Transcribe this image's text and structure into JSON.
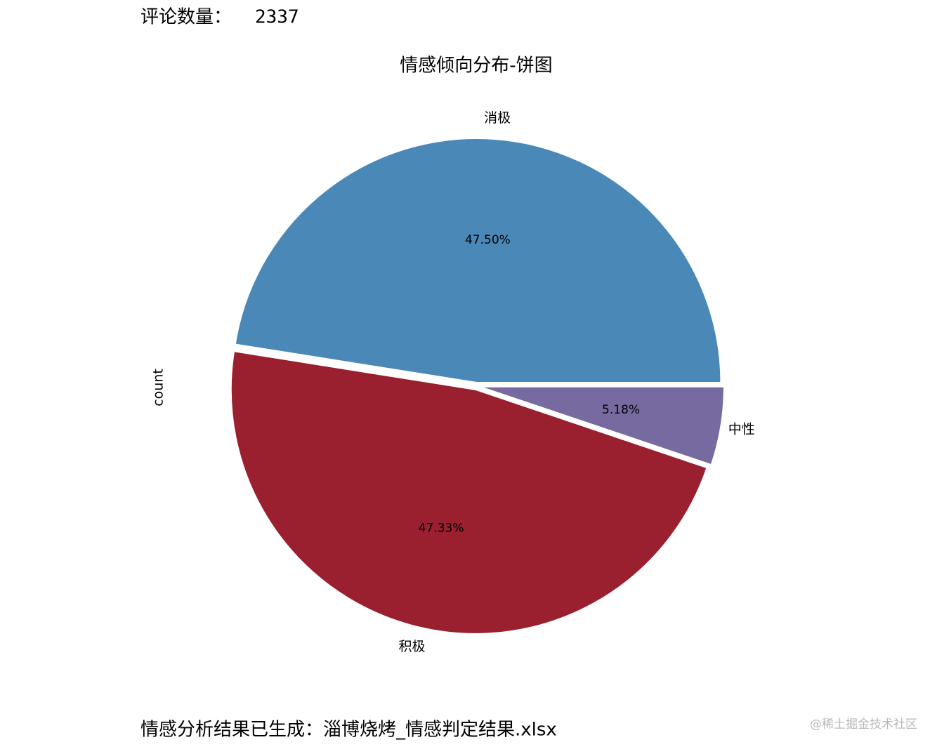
{
  "header": {
    "count_label": "评论数量：",
    "count_value": "2337"
  },
  "chart_data": {
    "type": "pie",
    "title": "情感倾向分布-饼图",
    "ylabel": "count",
    "categories": [
      "消极",
      "积极",
      "中性"
    ],
    "values": [
      47.5,
      47.33,
      5.18
    ],
    "value_labels": [
      "47.50%",
      "47.33%",
      "5.18%"
    ],
    "colors": [
      "#4a89b7",
      "#9a1f2f",
      "#776aa1"
    ]
  },
  "footer": {
    "message": "情感分析结果已生成：淄博烧烤_情感判定结果.xlsx",
    "watermark": "@稀土掘金技术社区"
  }
}
